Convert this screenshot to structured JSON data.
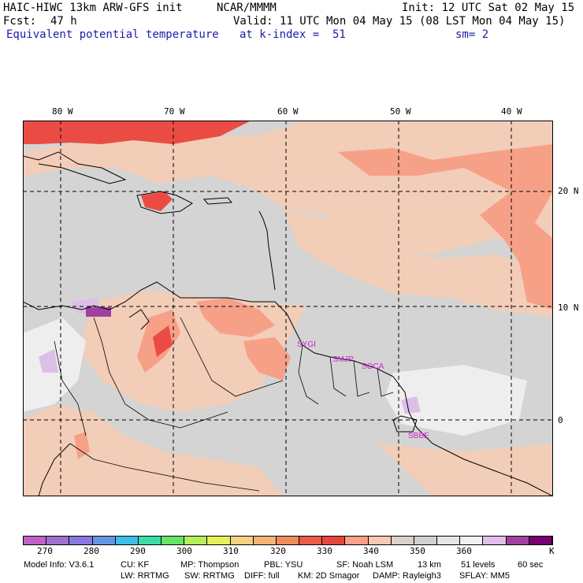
{
  "header": {
    "model": "HAIC-HIWC 13km ARW-GFS init",
    "org": "NCAR/MMMM",
    "init": "Init: 12 UTC Sat 02 May 15",
    "fcst_label": "Fcst:",
    "fcst_value": "47 h",
    "valid": "Valid: 11 UTC Mon 04 May 15 (08 LST Mon 04 May 15)",
    "field": "Equivalent potential temperature",
    "level": "at k-index =  51",
    "smooth": "sm= 2"
  },
  "map": {
    "lon_labels": [
      "80 W",
      "70 W",
      "60 W",
      "50 W",
      "40 W"
    ],
    "lat_labels": [
      "20 N",
      "10 N",
      "0"
    ],
    "stations": [
      "SYGI",
      "SMJP",
      "SOCA",
      "SBBE"
    ]
  },
  "colorbar": {
    "labels": [
      "270",
      "280",
      "290",
      "300",
      "310",
      "320",
      "330",
      "340",
      "350",
      "360"
    ],
    "unit": "K",
    "colors": [
      "#c060c8",
      "#a070d0",
      "#8a78e0",
      "#6496e6",
      "#3cbee6",
      "#3cdcaa",
      "#64e664",
      "#b4ee5a",
      "#e6f05a",
      "#f5d282",
      "#f5b478",
      "#f08c5a",
      "#eb5a4b",
      "#e6463c",
      "#f8a088",
      "#f8c8b0",
      "#ddd0c8",
      "#d2d2d2",
      "#e6e6e6",
      "#f0f0f0",
      "#e0c0e8",
      "#a040a0",
      "#780070"
    ]
  },
  "footer": {
    "line1": [
      "Model Info: V3.6.1",
      "CU: KF",
      "MP: Thompson",
      "PBL: YSU",
      "SF: Noah LSM",
      "13 km",
      "51 levels",
      "60 sec"
    ],
    "line2": [
      "LW: RRTMG",
      "SW: RRTMG",
      "DIFF: full",
      "KM: 2D Smagor",
      "DAMP: Rayleigh3",
      "SFLAY: MM5"
    ]
  }
}
